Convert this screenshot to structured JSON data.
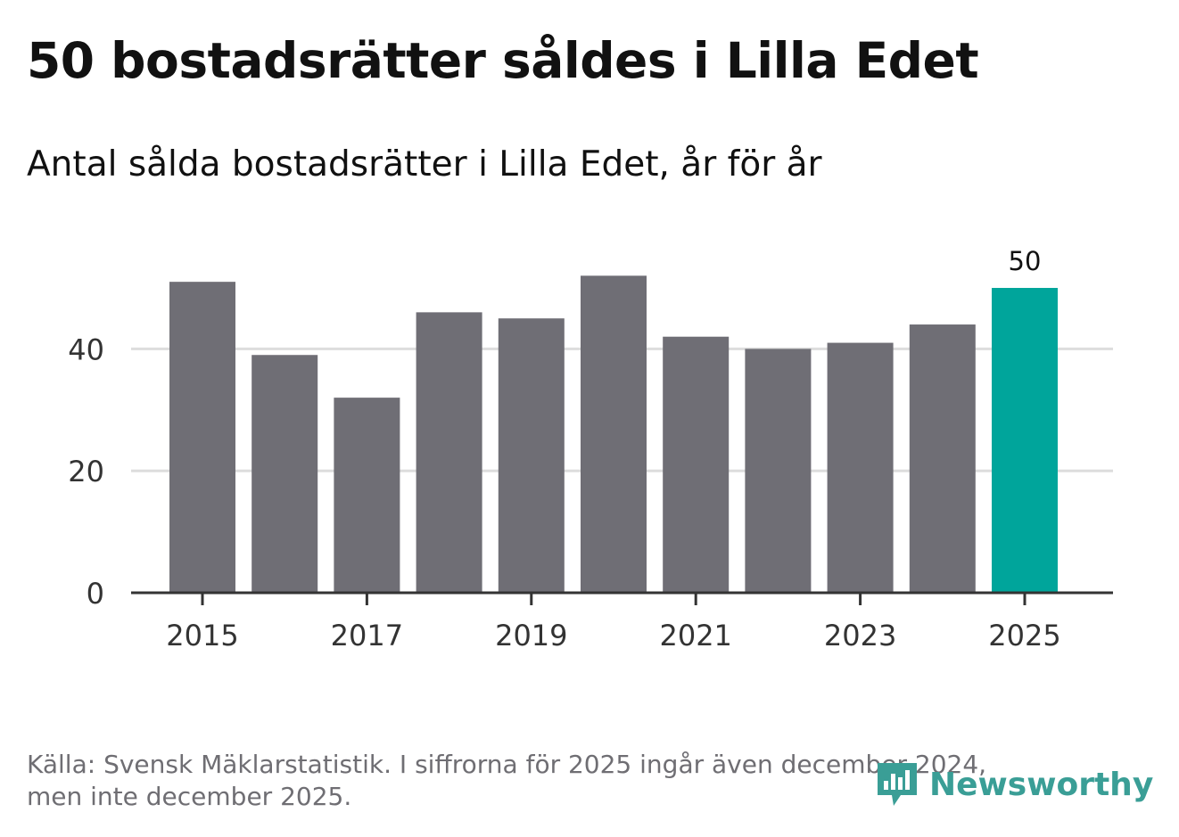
{
  "title": "50 bostadsrätter såldes i Lilla Edet",
  "subtitle": "Antal sålda bostadsrätter i Lilla Edet, år för år",
  "footnote": {
    "line1": "Källa: Svensk Mäklarstatistik. I siffrorna för 2025 ingår även december 2024,",
    "line2": "men inte december 2025."
  },
  "logo": {
    "text": "Newsworthy",
    "color": "#3a9e96"
  },
  "colors": {
    "bar": "#6f6e75",
    "highlight": "#00a59b",
    "grid": "#dddddd",
    "axis": "#333333"
  },
  "chart_data": {
    "type": "bar",
    "title": "50 bostadsrätter såldes i Lilla Edet",
    "xlabel": "",
    "ylabel": "",
    "categories": [
      "2015",
      "2016",
      "2017",
      "2018",
      "2019",
      "2020",
      "2021",
      "2022",
      "2023",
      "2024",
      "2025"
    ],
    "values": [
      51,
      39,
      32,
      46,
      45,
      52,
      42,
      40,
      41,
      44,
      50
    ],
    "highlight_index": 10,
    "highlight_label": "50",
    "x_tick_labels": [
      "2015",
      "2017",
      "2019",
      "2021",
      "2023",
      "2025"
    ],
    "y_ticks": [
      0,
      20,
      40
    ],
    "ylim": [
      0,
      55
    ],
    "grid": true
  }
}
